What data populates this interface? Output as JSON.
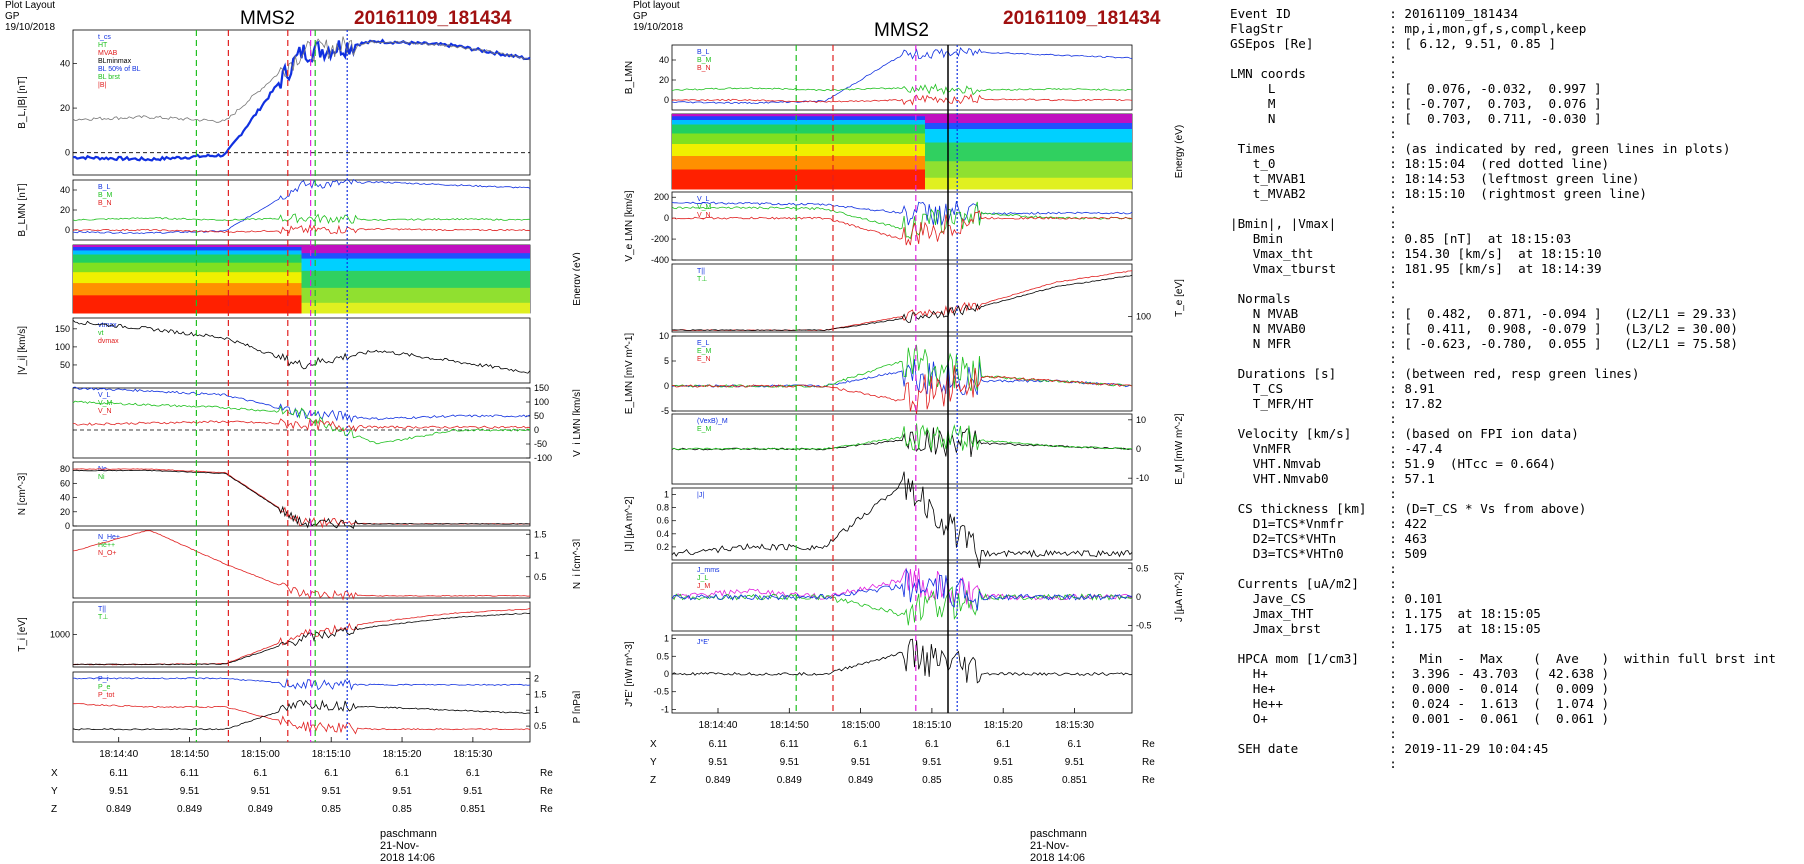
{
  "left_figure": {
    "header": "Plot Layout GP 19/10/2018",
    "spacecraft": "MMS2",
    "event": "20161109_181434",
    "footer": "paschmann 21-Nov-2018 14:06",
    "time_ticks": [
      "18:14:40",
      "18:14:50",
      "18:15:00",
      "18:15:10",
      "18:15:20",
      "18:15:30"
    ],
    "pos_rows": [
      {
        "label": "X",
        "values": [
          "6.11",
          "6.11",
          "6.1",
          "6.1",
          "6.1",
          "6.1"
        ],
        "unit": "Re"
      },
      {
        "label": "Y",
        "values": [
          "9.51",
          "9.51",
          "9.51",
          "9.51",
          "9.51",
          "9.51"
        ],
        "unit": "Re"
      },
      {
        "label": "Z",
        "values": [
          "0.849",
          "0.849",
          "0.849",
          "0.85",
          "0.85",
          "0.851"
        ],
        "unit": "Re"
      }
    ],
    "panels": [
      {
        "ylabel": "B_L,|B| [nT]",
        "legend": [
          "t_cs",
          "HT",
          "MVAB",
          "BLminmax",
          "BL 50% of BL",
          "BL brst",
          "|B|"
        ]
      },
      {
        "ylabel": "B_LMN [nT]",
        "legend": [
          "B_L",
          "B_M",
          "B_N"
        ]
      },
      {
        "ylabel": "Energy (eV)"
      },
      {
        "ylabel": "|V_i| [km/s]",
        "legend": [
          "vtmax",
          "vt",
          "dvmax"
        ]
      },
      {
        "ylabel": "V_i LMN [km/s]",
        "legend": [
          "V_L",
          "V_M",
          "V_N"
        ]
      },
      {
        "ylabel": "N [cm^-3]",
        "legend": [
          "Ne",
          "Ni"
        ]
      },
      {
        "ylabel": "N_i [cm^-3]",
        "legend": [
          "N_He+",
          "He++",
          "N_O+"
        ]
      },
      {
        "ylabel": "T_i [eV]",
        "legend": [
          "T||",
          "T⊥"
        ]
      },
      {
        "ylabel": "P [nPa]",
        "legend": [
          "P_i",
          "P_e",
          "P_tot"
        ]
      }
    ]
  },
  "mid_figure": {
    "header": "Plot layout GP 19/10/2018",
    "spacecraft": "MMS2",
    "event": "20161109_181434",
    "footer": "paschmann 21-Nov-2018 14:06",
    "time_ticks": [
      "18:14:40",
      "18:14:50",
      "18:15:00",
      "18:15:10",
      "18:15:20",
      "18:15:30"
    ],
    "pos_rows": [
      {
        "label": "X",
        "values": [
          "6.11",
          "6.11",
          "6.1",
          "6.1",
          "6.1",
          "6.1"
        ],
        "unit": "Re"
      },
      {
        "label": "Y",
        "values": [
          "9.51",
          "9.51",
          "9.51",
          "9.51",
          "9.51",
          "9.51"
        ],
        "unit": "Re"
      },
      {
        "label": "Z",
        "values": [
          "0.849",
          "0.849",
          "0.849",
          "0.85",
          "0.85",
          "0.851"
        ],
        "unit": "Re"
      }
    ],
    "panels": [
      {
        "ylabel": "B_LMN",
        "legend": [
          "B_L",
          "B_M",
          "B_N"
        ]
      },
      {
        "ylabel": "Energy (eV)"
      },
      {
        "ylabel": "V_e LMN [km/s]",
        "legend": [
          "V_L",
          "V_M",
          "V_N"
        ]
      },
      {
        "ylabel": "T_e [eV]",
        "legend": [
          "T||",
          "T⊥"
        ]
      },
      {
        "ylabel": "E_LMN [mV m^-1]",
        "legend": [
          "E_L",
          "E_M",
          "E_N"
        ]
      },
      {
        "ylabel": "E_M [mW m^-2]",
        "legend": [
          "(VexB)_M",
          "E_M"
        ]
      },
      {
        "ylabel": "|J| [µA m^-2]",
        "legend": [
          "|J|"
        ]
      },
      {
        "ylabel": "J [µA m^-2]",
        "legend": [
          "J_mms",
          "J_L",
          "J_M"
        ]
      },
      {
        "ylabel": "J*E' [nW m^-3]",
        "legend": [
          "J*E'"
        ]
      }
    ]
  },
  "text_panel": "Event ID             : 20161109_181434\nFlagStr              : mp,i,mon,gf,s,compl,keep\nGSEpos [Re]          : [ 6.12, 9.51, 0.85 ]\n                     :\nLMN coords           :\n     L               : [  0.076, -0.032,  0.997 ]\n     M               : [ -0.707,  0.703,  0.076 ]\n     N               : [  0.703,  0.711, -0.030 ]\n                     :\n Times               : (as indicated by red, green lines in plots)\n   t_0               : 18:15:04  (red dotted line)\n   t_MVAB1           : 18:14:53  (leftmost green line)\n   t_MVAB2           : 18:15:10  (rightmost green line)\n                     :\n|Bmin|, |Vmax|       :\n   Bmin              : 0.85 [nT]  at 18:15:03\n   Vmax_tht          : 154.30 [km/s]  at 18:15:10\n   Vmax_tburst       : 181.95 [km/s]  at 18:14:39\n                     :\n Normals             :\n   N MVAB            : [  0.482,  0.871, -0.094 ]   (L2/L1 = 29.33)\n   N MVAB0           : [  0.411,  0.908, -0.079 ]   (L3/L2 = 30.00)\n   N MFR             : [ -0.623, -0.780,  0.055 ]   (L2/L1 = 75.58)\n                     :\n Durations [s]       : (between red, resp green lines)\n   T_CS              : 8.91\n   T_MFR/HT          : 17.82\n                     :\n Velocity [km/s]     : (based on FPI ion data)\n   VnMFR             : -47.4\n   VHT.Nmvab         : 51.9  (HTcc = 0.664)\n   VHT.Nmvab0        : 57.1\n                     :\n CS thickness [km]   : (D=T_CS * Vs from above)\n   D1=TCS*Vnmfr      : 422\n   D2=TCS*VHTn       : 463\n   D3=TCS*VHTn0      : 509\n                     :\n Currents [uA/m2]    :\n   Jave_CS           : 0.101\n   Jmax_THT          : 1.175  at 18:15:05\n   Jmax_brst         : 1.175  at 18:15:05\n                     :\n HPCA mom [1/cm3]    :   Min  -  Max    (  Ave   )  within full brst int\n   H+                :  3.396 - 43.703  ( 42.638 )\n   He+               :  0.000 -  0.014  (  0.009 )\n   He++              :  0.024 -  1.613  (  1.074 )\n   O+                :  0.001 -  0.061  (  0.061 )\n                     :\n SEH date            : 2019-11-29 10:04:45\n                     :",
  "chart_data": [
    {
      "type": "line",
      "title": "MMS2 20161109_181434",
      "xlabel": "",
      "x_ticks": [
        "18:14:40",
        "18:14:50",
        "18:15:00",
        "18:15:10",
        "18:15:20",
        "18:15:30"
      ],
      "panels": [
        {
          "ylabel": "B_L,|B| [nT]",
          "ylim": [
            -10,
            55
          ],
          "series": [
            {
              "name": "BL brst",
              "values": [
                -2,
                -3,
                -1,
                45,
                50,
                48,
                42
              ]
            },
            {
              "name": "|B|",
              "values": [
                15,
                16,
                14,
                45,
                50,
                48,
                42
              ]
            }
          ]
        },
        {
          "ylabel": "B_LMN [nT]",
          "ylim": [
            -10,
            50
          ],
          "series": [
            {
              "name": "B_L",
              "values": [
                -2,
                -3,
                -1,
                45,
                48,
                45,
                42
              ]
            },
            {
              "name": "B_M",
              "values": [
                10,
                12,
                10,
                12,
                10,
                11,
                10
              ]
            },
            {
              "name": "B_N",
              "values": [
                0,
                0,
                -2,
                0,
                1,
                0,
                0
              ]
            }
          ]
        },
        {
          "ylabel": "|V_i| [km/s]",
          "ylim": [
            0,
            180
          ],
          "series": [
            {
              "name": "vt",
              "values": [
                170,
                150,
                125,
                50,
                90,
                60,
                30
              ]
            }
          ]
        },
        {
          "ylabel": "V_i LMN [km/s]",
          "ylim": [
            -100,
            150
          ],
          "series": [
            {
              "name": "V_L",
              "values": [
                150,
                140,
                125,
                60,
                40,
                50,
                50
              ]
            },
            {
              "name": "V_M",
              "values": [
                100,
                90,
                80,
                60,
                -50,
                0,
                0
              ]
            },
            {
              "name": "V_N",
              "values": [
                20,
                25,
                30,
                20,
                10,
                10,
                10
              ]
            }
          ]
        },
        {
          "ylabel": "N [cm^-3]",
          "ylim": [
            0,
            90
          ],
          "series": [
            {
              "name": "Ne",
              "values": [
                80,
                80,
                75,
                5,
                3,
                3,
                3
              ]
            },
            {
              "name": "Ni",
              "values": [
                78,
                78,
                74,
                4,
                3,
                3,
                3
              ]
            }
          ]
        },
        {
          "ylabel": "N_i [cm^-3]",
          "ylim": [
            0,
            1.6
          ],
          "series": [
            {
              "name": "He++",
              "values": [
                1.1,
                1.6,
                0.8,
                0.1,
                0.05,
                0.05,
                0.05
              ]
            }
          ]
        },
        {
          "ylabel": "T_i [eV]",
          "series": [
            {
              "name": "T||",
              "values": [
                300,
                300,
                320,
                1000,
                1300,
                1500,
                1600
              ]
            },
            {
              "name": "T⊥",
              "values": [
                300,
                300,
                310,
                900,
                1200,
                1400,
                1500
              ]
            }
          ]
        },
        {
          "ylabel": "P [nPa]",
          "ylim": [
            0,
            2.2
          ],
          "series": [
            {
              "name": "P_i",
              "values": [
                2.0,
                2.0,
                2.0,
                1.8,
                1.8,
                1.8,
                1.8
              ]
            },
            {
              "name": "P_e",
              "values": [
                1.2,
                1.1,
                1.1,
                0.5,
                0.4,
                0.4,
                0.4
              ]
            },
            {
              "name": "P_tot",
              "values": [
                0.4,
                0.4,
                0.4,
                1.2,
                1.1,
                1.0,
                0.9
              ]
            }
          ]
        }
      ]
    },
    {
      "type": "line",
      "title": "MMS2 20161109_181434",
      "xlabel": "",
      "x_ticks": [
        "18:14:40",
        "18:14:50",
        "18:15:00",
        "18:15:10",
        "18:15:20",
        "18:15:30"
      ],
      "panels": [
        {
          "ylabel": "B_LMN",
          "ylim": [
            -10,
            55
          ],
          "series": [
            {
              "name": "B_L",
              "values": [
                -2,
                -3,
                -1,
                45,
                48,
                45,
                42
              ]
            },
            {
              "name": "B_M",
              "values": [
                10,
                12,
                10,
                12,
                10,
                11,
                10
              ]
            },
            {
              "name": "B_N",
              "values": [
                0,
                0,
                -2,
                0,
                1,
                0,
                0
              ]
            }
          ]
        },
        {
          "ylabel": "V_e LMN [km/s]",
          "ylim": [
            -400,
            250
          ],
          "series": [
            {
              "name": "V_L",
              "values": [
                150,
                140,
                130,
                50,
                40,
                50,
                50
              ]
            },
            {
              "name": "V_M",
              "values": [
                100,
                100,
                90,
                -100,
                50,
                0,
                0
              ]
            },
            {
              "name": "V_N",
              "values": [
                0,
                0,
                0,
                -200,
                0,
                0,
                0
              ]
            }
          ]
        },
        {
          "ylabel": "T_e [eV]",
          "series": [
            {
              "name": "T||",
              "values": [
                40,
                40,
                40,
                100,
                150,
                250,
                300
              ]
            },
            {
              "name": "T⊥",
              "values": [
                40,
                40,
                40,
                90,
                140,
                230,
                280
              ]
            }
          ]
        },
        {
          "ylabel": "E_LMN [mV m^-1]",
          "ylim": [
            -5,
            10
          ],
          "series": [
            {
              "name": "E_L",
              "values": [
                0,
                0,
                0,
                3,
                1,
                1,
                0
              ]
            },
            {
              "name": "E_M",
              "values": [
                0,
                0,
                0,
                5,
                2,
                1,
                0
              ]
            },
            {
              "name": "E_N",
              "values": [
                0,
                0,
                0,
                -3,
                2,
                1,
                0
              ]
            }
          ]
        },
        {
          "ylabel": "E_M [mW m^-2]",
          "ylim": [
            -12,
            12
          ],
          "series": [
            {
              "name": "(VexB)_M",
              "values": [
                0,
                0,
                0,
                3,
                2,
                1,
                0
              ]
            },
            {
              "name": "E_M",
              "values": [
                0,
                0,
                0,
                4,
                3,
                1,
                0
              ]
            }
          ]
        },
        {
          "ylabel": "|J| [µA m^-2]",
          "ylim": [
            0,
            1.1
          ],
          "series": [
            {
              "name": "|J|",
              "values": [
                0.1,
                0.2,
                0.2,
                1.17,
                0.1,
                0.1,
                0.1
              ]
            }
          ]
        },
        {
          "ylabel": "J [µA m^-2]",
          "ylim": [
            -0.6,
            0.6
          ],
          "series": [
            {
              "name": "J_mms",
              "values": [
                0,
                0.1,
                0,
                0.3,
                0,
                0,
                0
              ]
            },
            {
              "name": "J_L",
              "values": [
                0,
                0,
                0,
                -0.3,
                0,
                0,
                0
              ]
            },
            {
              "name": "J_M",
              "values": [
                0,
                0,
                0,
                0.2,
                0,
                0,
                0
              ]
            }
          ]
        },
        {
          "ylabel": "J*E' [nW m^-3]",
          "ylim": [
            -1.1,
            1.1
          ],
          "series": [
            {
              "name": "J*E'",
              "values": [
                0,
                0,
                0,
                0.6,
                0,
                0,
                0
              ]
            }
          ]
        }
      ]
    }
  ]
}
